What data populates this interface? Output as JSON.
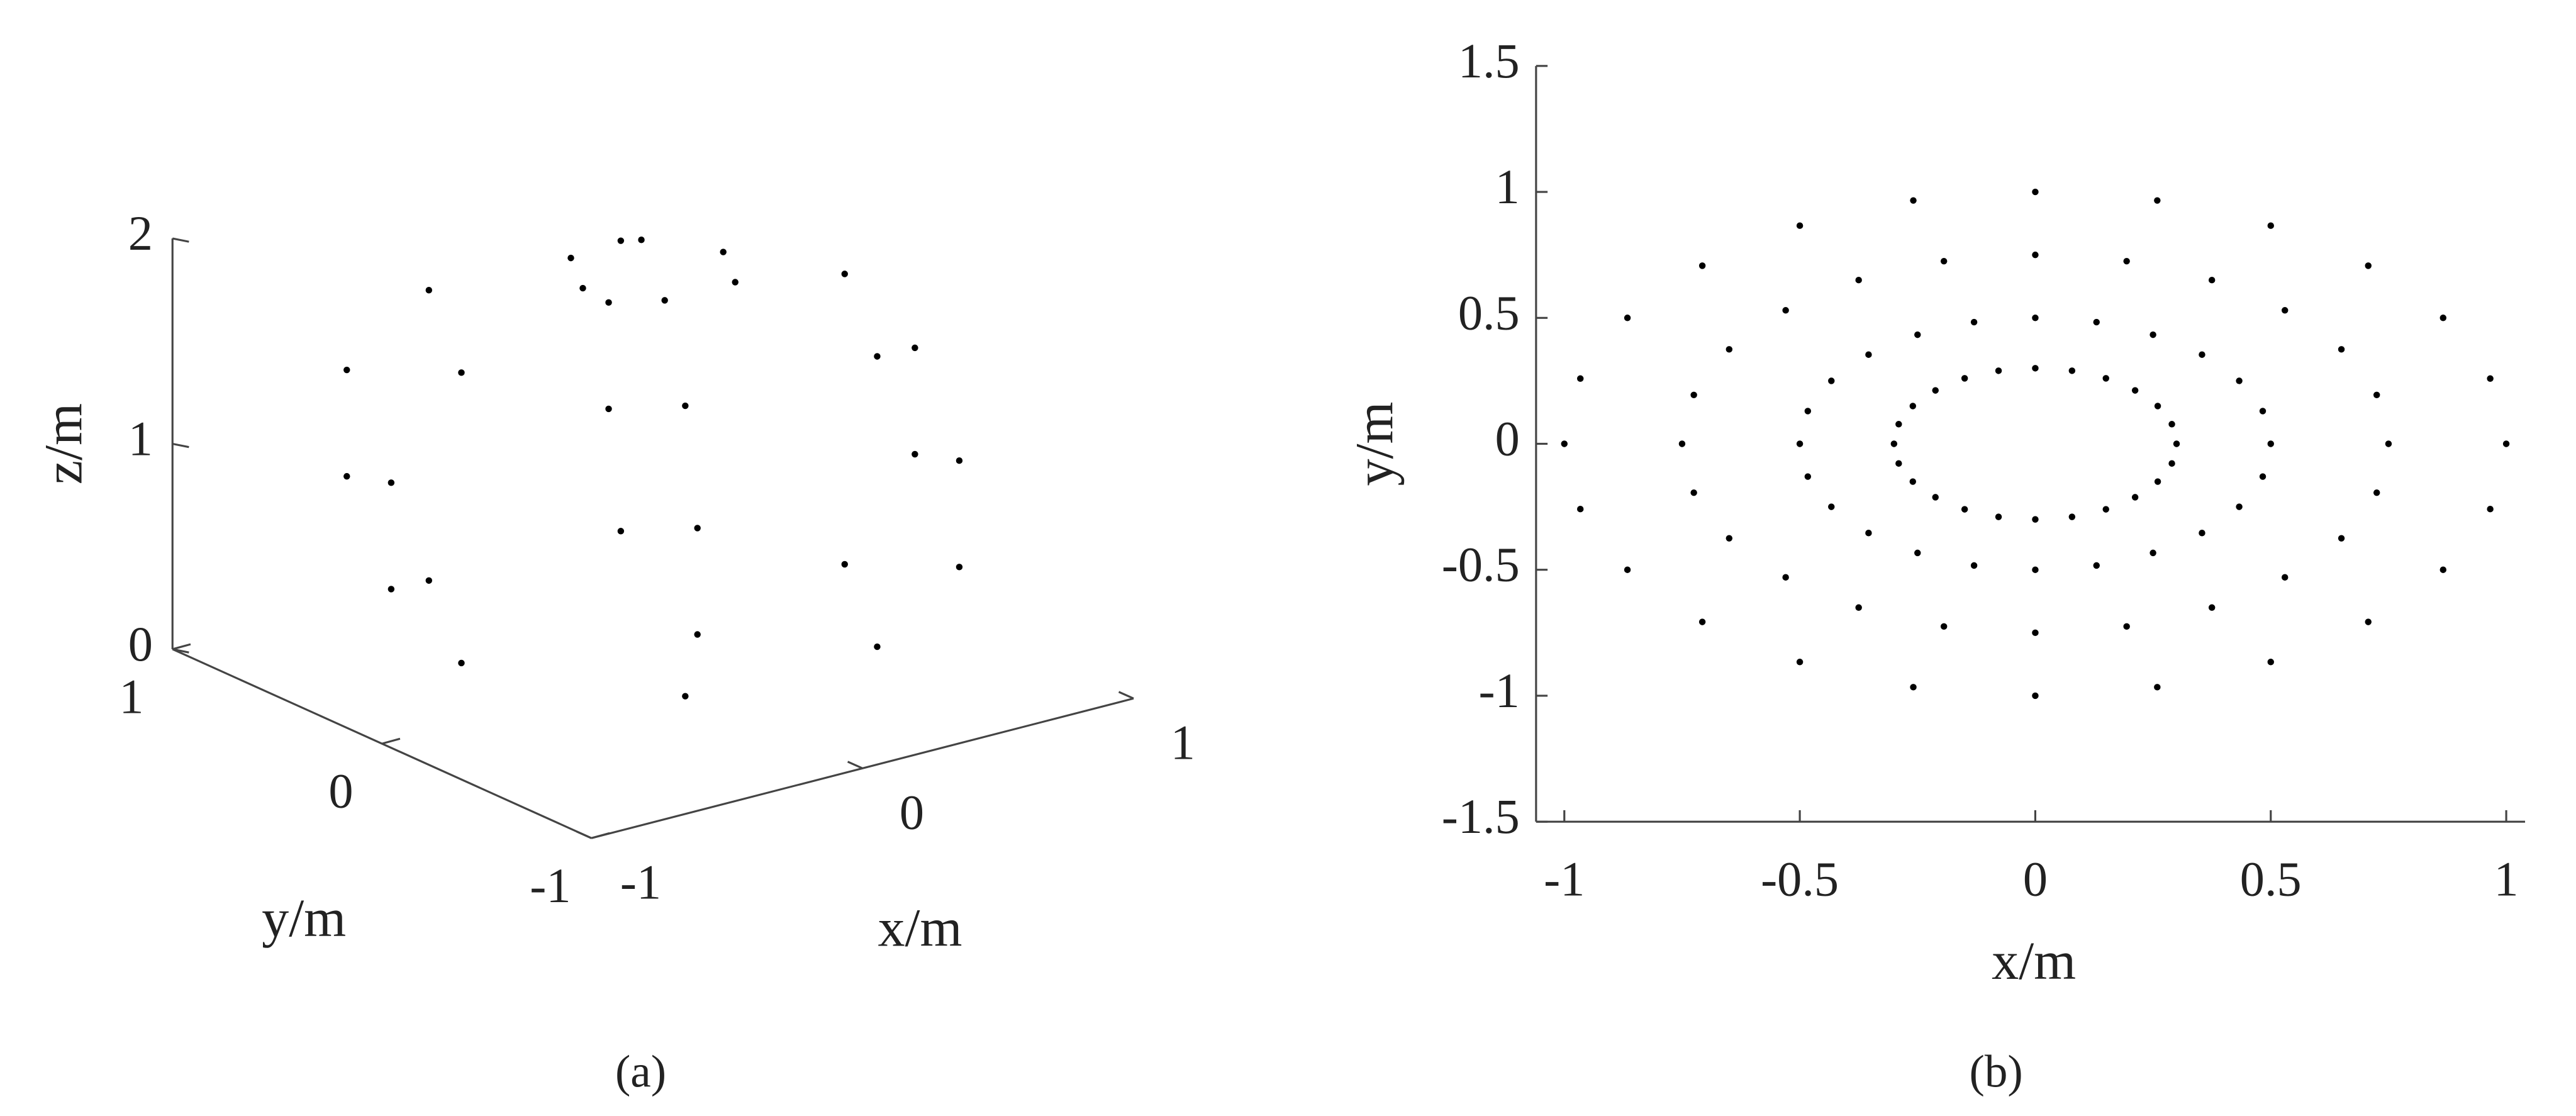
{
  "chart_data": [
    {
      "type": "scatter3d",
      "color": "#000000",
      "x": [
        0.707,
        0.354,
        -0.354,
        -0.707,
        -0.354,
        0.354,
        0.966,
        0.483,
        -0.483,
        -0.966,
        -0.483,
        0.483,
        0.966,
        0.483,
        -0.483,
        -0.966,
        -0.483,
        0.483,
        0.707,
        0.354,
        -0.354,
        -0.707,
        -0.354,
        0.354,
        0.259,
        0.13,
        -0.13,
        -0.259,
        -0.13,
        0.13
      ],
      "y": [
        0,
        0.612,
        0.612,
        0,
        -0.612,
        -0.612,
        0,
        0.837,
        0.837,
        0,
        -0.837,
        -0.837,
        0,
        0.837,
        0.837,
        0,
        -0.837,
        -0.837,
        0,
        0.612,
        0.612,
        0,
        -0.612,
        -0.612,
        0,
        0.224,
        0.224,
        0,
        -0.224,
        -0.224
      ],
      "z": [
        0.293,
        0.293,
        0.293,
        0.293,
        0.293,
        0.293,
        0.741,
        0.741,
        0.741,
        0.741,
        0.741,
        0.741,
        1.259,
        1.259,
        1.259,
        1.259,
        1.259,
        1.259,
        1.707,
        1.707,
        1.707,
        1.707,
        1.707,
        1.707,
        1.966,
        1.966,
        1.966,
        1.966,
        1.966,
        1.966
      ],
      "xlim": [
        -1,
        1
      ],
      "ylim": [
        -1,
        1
      ],
      "zlim": [
        0,
        2
      ],
      "xticks": [
        -1,
        0,
        1
      ],
      "yticks": [
        -1,
        0,
        1
      ],
      "zticks": [
        0,
        1,
        2
      ],
      "xlabel": "x/m",
      "ylabel": "y/m",
      "zlabel": "z/m",
      "caption": "(a)"
    },
    {
      "type": "scatter",
      "color": "#000000",
      "x": [
        0.3,
        0.5,
        0.75,
        1,
        0.29,
        0.483,
        0.725,
        0.966,
        0.26,
        0.433,
        0.65,
        0.866,
        0.212,
        0.354,
        0.53,
        0.707,
        0.15,
        0.25,
        0.375,
        0.5,
        0.078,
        0.13,
        0.194,
        0.259,
        0,
        0,
        0,
        0,
        -0.078,
        -0.13,
        -0.194,
        -0.259,
        -0.15,
        -0.25,
        -0.375,
        -0.5,
        -0.212,
        -0.354,
        -0.53,
        -0.707,
        -0.26,
        -0.433,
        -0.65,
        -0.866,
        -0.29,
        -0.483,
        -0.725,
        -0.966,
        -0.3,
        -0.5,
        -0.75,
        -1,
        -0.29,
        -0.483,
        -0.725,
        -0.966,
        -0.26,
        -0.433,
        -0.65,
        -0.866,
        -0.212,
        -0.354,
        -0.53,
        -0.707,
        -0.15,
        -0.25,
        -0.375,
        -0.5,
        -0.078,
        -0.13,
        -0.194,
        -0.259,
        0,
        0,
        0,
        0,
        0.078,
        0.13,
        0.194,
        0.259,
        0.15,
        0.25,
        0.375,
        0.5,
        0.212,
        0.354,
        0.53,
        0.707,
        0.26,
        0.433,
        0.65,
        0.866,
        0.29,
        0.483,
        0.725,
        0.966
      ],
      "y": [
        0,
        0,
        0,
        0,
        0.078,
        0.13,
        0.194,
        0.259,
        0.15,
        0.25,
        0.375,
        0.5,
        0.212,
        0.354,
        0.53,
        0.707,
        0.26,
        0.433,
        0.65,
        0.866,
        0.29,
        0.483,
        0.725,
        0.966,
        0.3,
        0.5,
        0.75,
        1,
        0.29,
        0.483,
        0.725,
        0.966,
        0.26,
        0.433,
        0.65,
        0.866,
        0.212,
        0.354,
        0.53,
        0.707,
        0.15,
        0.25,
        0.375,
        0.5,
        0.078,
        0.13,
        0.194,
        0.259,
        0,
        0,
        0,
        0,
        -0.078,
        -0.13,
        -0.194,
        -0.259,
        -0.15,
        -0.25,
        -0.375,
        -0.5,
        -0.212,
        -0.354,
        -0.53,
        -0.707,
        -0.26,
        -0.433,
        -0.65,
        -0.866,
        -0.29,
        -0.483,
        -0.725,
        -0.966,
        -0.3,
        -0.5,
        -0.75,
        -1,
        -0.29,
        -0.483,
        -0.725,
        -0.966,
        -0.26,
        -0.433,
        -0.65,
        -0.866,
        -0.212,
        -0.354,
        -0.53,
        -0.707,
        -0.15,
        -0.25,
        -0.375,
        -0.5,
        -0.078,
        -0.13,
        -0.194,
        -0.259
      ],
      "xlim": [
        -1.06,
        1.04
      ],
      "ylim": [
        -1.5,
        1.5
      ],
      "xticks": [
        -1,
        -0.5,
        0,
        0.5,
        1
      ],
      "yticks": [
        -1.5,
        -1,
        -0.5,
        0,
        0.5,
        1,
        1.5
      ],
      "xlabel": "x/m",
      "ylabel": "y/m",
      "caption": "(b)"
    }
  ]
}
